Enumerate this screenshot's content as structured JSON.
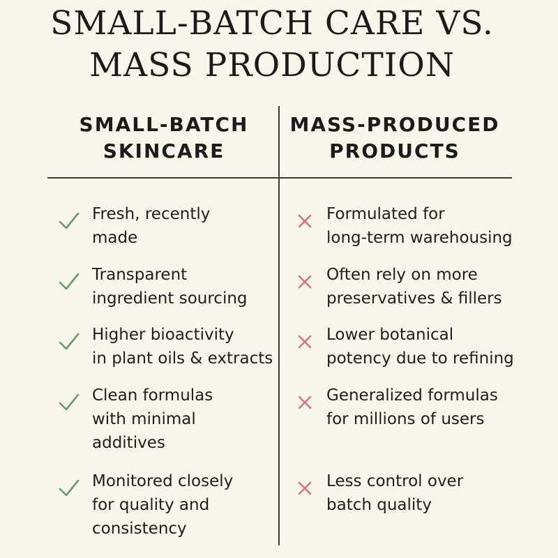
{
  "title": {
    "line1": "SMALL-BATCH CARE VS.",
    "line2": "MASS PRODUCTION"
  },
  "columns": {
    "left": {
      "header_line1": "SMALL-BATCH",
      "header_line2": "SKINCARE",
      "icon": "check-icon",
      "icon_color": "#6a9a6a",
      "items": [
        {
          "lines": [
            "Fresh, recently",
            "made"
          ]
        },
        {
          "lines": [
            "Transparent",
            "ingredient sourcing"
          ]
        },
        {
          "lines": [
            "Higher bioactivity",
            "in plant oils & extracts"
          ]
        },
        {
          "lines": [
            "Clean formulas",
            "with minimal",
            "additives"
          ]
        },
        {
          "lines": [
            "Monitored closely",
            "for quality and",
            "consistency"
          ]
        }
      ]
    },
    "right": {
      "header_line1": "MASS-PRODUCED",
      "header_line2": "PRODUCTS",
      "icon": "x-icon",
      "icon_color": "#d9737e",
      "items": [
        {
          "lines": [
            "Formulated for",
            "long-term warehousing"
          ]
        },
        {
          "lines": [
            "Often rely on more",
            "preservatives & fillers"
          ]
        },
        {
          "lines": [
            "Lower botanical",
            "potency due to refining"
          ]
        },
        {
          "lines": [
            "Generalized formulas",
            "for millions of users"
          ]
        },
        {
          "lines": [
            "Less control over",
            "batch quality"
          ]
        }
      ]
    }
  }
}
